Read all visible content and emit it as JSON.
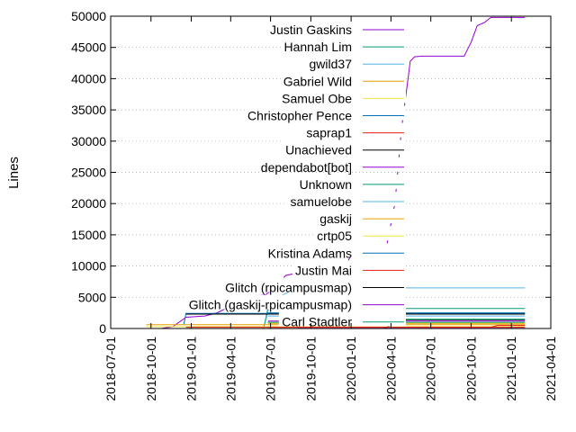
{
  "chart_data": {
    "type": "line",
    "ylabel": "Lines",
    "ylim": [
      0,
      50000
    ],
    "yticks": [
      0,
      5000,
      10000,
      15000,
      20000,
      25000,
      30000,
      35000,
      40000,
      45000,
      50000
    ],
    "xlim": [
      "2018-07-01",
      "2021-04-01"
    ],
    "xticks": [
      "2018-07-01",
      "2018-10-01",
      "2019-01-01",
      "2019-04-01",
      "2019-07-01",
      "2019-10-01",
      "2020-01-01",
      "2020-04-01",
      "2020-07-01",
      "2020-10-01",
      "2021-01-01",
      "2021-04-01"
    ],
    "grid": "dotted",
    "legend_position": "top-left-inside",
    "series": [
      {
        "name": "Justin Gaskins",
        "color": "#9400d3",
        "points": [
          [
            "2018-10-25",
            0
          ],
          [
            "2018-11-20",
            300
          ],
          [
            "2018-12-20",
            1800
          ],
          [
            "2019-02-01",
            2000
          ],
          [
            "2019-03-01",
            2500
          ],
          [
            "2019-04-01",
            3600
          ],
          [
            "2019-05-01",
            4500
          ],
          [
            "2019-05-20",
            5200
          ],
          [
            "2019-06-20",
            5400
          ],
          [
            "2019-07-10",
            6500
          ],
          [
            "2019-08-05",
            8500
          ],
          [
            "2019-09-01",
            8900
          ],
          [
            "2019-11-01",
            8900
          ],
          [
            "2019-12-20",
            10000
          ],
          [
            "2020-01-01",
            11800
          ],
          [
            "2020-03-01",
            11900
          ],
          [
            "2020-03-20",
            12500
          ],
          [
            "2020-04-10",
            20000
          ],
          [
            "2020-04-25",
            32000
          ],
          [
            "2020-05-10",
            40000
          ],
          [
            "2020-05-15",
            42800
          ],
          [
            "2020-05-25",
            43500
          ],
          [
            "2020-06-10",
            43600
          ],
          [
            "2020-09-15",
            43600
          ],
          [
            "2020-10-01",
            45800
          ],
          [
            "2020-10-15",
            48500
          ],
          [
            "2020-11-01",
            49000
          ],
          [
            "2020-11-15",
            49800
          ],
          [
            "2021-02-01",
            49800
          ]
        ]
      },
      {
        "name": "Hannah Lim",
        "color": "#009e73",
        "points": [
          [
            "2019-06-15",
            0
          ],
          [
            "2019-06-25",
            3200
          ],
          [
            "2021-02-01",
            3200
          ]
        ]
      },
      {
        "name": "gwild37",
        "color": "#56b4e9",
        "points": [
          [
            "2019-06-20",
            1200
          ],
          [
            "2019-07-01",
            4500
          ],
          [
            "2019-09-01",
            6500
          ],
          [
            "2021-02-01",
            6500
          ]
        ]
      },
      {
        "name": "Gabriel Wild",
        "color": "#e69f00",
        "points": [
          [
            "2018-09-20",
            600
          ],
          [
            "2021-02-01",
            600
          ]
        ]
      },
      {
        "name": "Samuel Obe",
        "color": "#f0e442",
        "points": [
          [
            "2018-09-20",
            300
          ],
          [
            "2021-02-01",
            300
          ]
        ]
      },
      {
        "name": "Christopher Pence",
        "color": "#0072b2",
        "points": [
          [
            "2018-12-15",
            700
          ],
          [
            "2018-12-20",
            2400
          ],
          [
            "2021-02-01",
            2400
          ]
        ]
      },
      {
        "name": "saprap1",
        "color": "#e51e10",
        "points": [
          [
            "2018-12-20",
            200
          ],
          [
            "2020-11-15",
            200
          ],
          [
            "2020-12-01",
            500
          ],
          [
            "2021-02-01",
            500
          ]
        ]
      },
      {
        "name": "Unachieved",
        "color": "#000000",
        "points": [
          [
            "2020-03-15",
            0
          ],
          [
            "2020-04-15",
            900
          ],
          [
            "2020-05-01",
            1400
          ],
          [
            "2021-02-01",
            1400
          ]
        ]
      },
      {
        "name": "dependabot[bot]",
        "color": "#9400d3",
        "points": [
          [
            "2019-09-01",
            50
          ],
          [
            "2021-02-01",
            50
          ]
        ]
      },
      {
        "name": "Unknown",
        "color": "#009e73",
        "points": [
          [
            "2020-04-01",
            1500
          ],
          [
            "2021-02-01",
            1500
          ]
        ]
      },
      {
        "name": "samuelobe",
        "color": "#56b4e9",
        "points": [
          [
            "2019-06-25",
            2000
          ],
          [
            "2021-02-01",
            2000
          ]
        ]
      },
      {
        "name": "gaskij",
        "color": "#e69f00",
        "points": [
          [
            "2019-06-25",
            800
          ],
          [
            "2021-02-01",
            800
          ]
        ]
      },
      {
        "name": "crtp05",
        "color": "#f0e442",
        "points": [
          [
            "2019-06-25",
            900
          ],
          [
            "2021-02-01",
            900
          ]
        ]
      },
      {
        "name": "Kristina Adams",
        "color": "#0072b2",
        "points": [
          [
            "2019-06-25",
            2500
          ],
          [
            "2021-02-01",
            2500
          ]
        ]
      },
      {
        "name": "Justin Mai",
        "color": "#e51e10",
        "points": [
          [
            "2019-06-25",
            200
          ],
          [
            "2021-02-01",
            200
          ]
        ]
      },
      {
        "name": "Glitch (rpicampusmap)",
        "color": "#000000",
        "points": [
          [
            "2018-12-20",
            2300
          ],
          [
            "2021-02-01",
            2300
          ]
        ]
      },
      {
        "name": "Glitch (gaskij-rpicampusmap)",
        "color": "#9400d3",
        "points": [
          [
            "2019-06-25",
            1200
          ],
          [
            "2021-02-01",
            1200
          ]
        ]
      },
      {
        "name": "Carl Stadtler",
        "color": "#009e73",
        "points": [
          [
            "2019-06-25",
            1000
          ],
          [
            "2021-02-01",
            1000
          ]
        ]
      }
    ]
  }
}
